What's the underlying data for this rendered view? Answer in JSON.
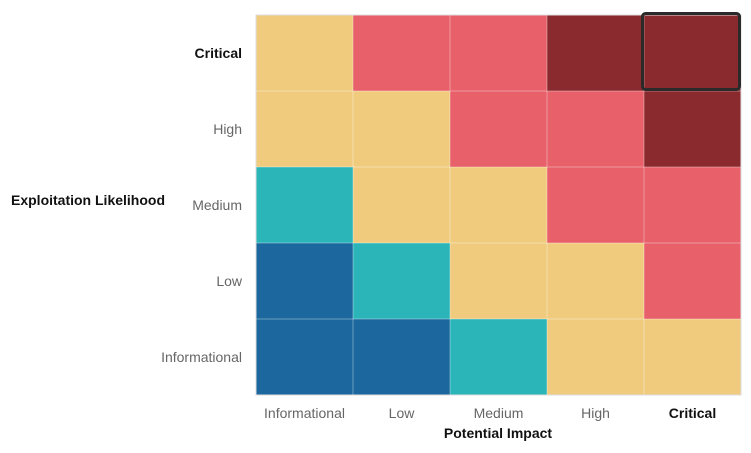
{
  "chart_data": {
    "type": "heatmap",
    "xlabel": "Potential Impact",
    "ylabel": "Exploitation Likelihood",
    "x_categories": [
      "Informational",
      "Low",
      "Medium",
      "High",
      "Critical"
    ],
    "y_categories": [
      "Critical",
      "High",
      "Medium",
      "Low",
      "Informational"
    ],
    "highlighted": {
      "x": "Critical",
      "y": "Critical"
    },
    "levels": {
      "1": "#1B679E",
      "2": "#2BB5B8",
      "3": "#F0CB7E",
      "4": "#E8606A",
      "5": "#8B2A2E"
    },
    "cells": [
      [
        3,
        4,
        4,
        5,
        5
      ],
      [
        3,
        3,
        4,
        4,
        5
      ],
      [
        2,
        3,
        3,
        4,
        4
      ],
      [
        1,
        2,
        3,
        3,
        4
      ],
      [
        1,
        1,
        2,
        3,
        3
      ]
    ],
    "grid": true,
    "legend": "none"
  }
}
